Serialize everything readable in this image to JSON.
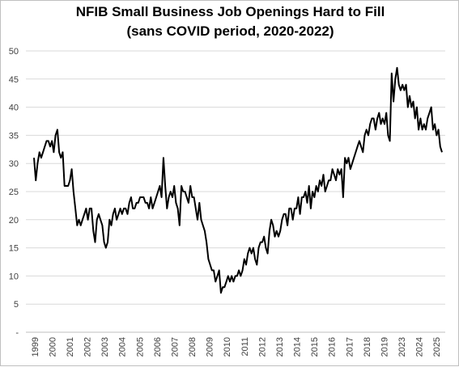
{
  "colors": {
    "line": "#000000",
    "grid": "#d9d9d9",
    "axis": "#bfbfbf",
    "text": "#404040",
    "background": "#ffffff"
  },
  "chart_data": {
    "type": "line",
    "title": [
      "NFIB Small Business Job Openings Hard to Fill",
      "(sans COVID period, 2020-2022)"
    ],
    "xlabel": "",
    "ylabel": "",
    "ylim": [
      0,
      50
    ],
    "y_ticks": [
      "-",
      "5",
      "10",
      "15",
      "20",
      "25",
      "30",
      "35",
      "40",
      "45",
      "50"
    ],
    "x_tick_labels": [
      "1999",
      "2000",
      "2001",
      "2002",
      "2003",
      "2004",
      "2005",
      "2006",
      "2007",
      "2008",
      "2009",
      "2010",
      "2011",
      "2012",
      "2013",
      "2014",
      "2015",
      "2016",
      "2017",
      "2018",
      "2019",
      "2023",
      "2024",
      "2025"
    ],
    "grid": "horizontal",
    "legend": "none",
    "series": [
      {
        "values": [
          31,
          27,
          30,
          32,
          31,
          32,
          33,
          34,
          34,
          33,
          34,
          32,
          35,
          36,
          32,
          31,
          32,
          26,
          26,
          26,
          27,
          29,
          25,
          22,
          19,
          20,
          19,
          20,
          21,
          22,
          20,
          22,
          22,
          18,
          16,
          20,
          21,
          20,
          19,
          16,
          15,
          16,
          20,
          19,
          21,
          22,
          20,
          21,
          22,
          21,
          22,
          22,
          21,
          23,
          24,
          22,
          22,
          23,
          23,
          24,
          24,
          24,
          23,
          23,
          22,
          24,
          22,
          23,
          24,
          25,
          26,
          24,
          31,
          26,
          22,
          24,
          25,
          24,
          26,
          23,
          22,
          19,
          26,
          25,
          25,
          24,
          23,
          26,
          24,
          24,
          22,
          20,
          23,
          20,
          19,
          18,
          16,
          13,
          12,
          11,
          11,
          9,
          10,
          11,
          7,
          8,
          8,
          9,
          10,
          9,
          10,
          9,
          10,
          10,
          11,
          10,
          11,
          13,
          12,
          14,
          15,
          14,
          15,
          13,
          12,
          15,
          16,
          16,
          17,
          15,
          14,
          18,
          20,
          19,
          17,
          18,
          17,
          18,
          20,
          21,
          21,
          19,
          22,
          22,
          20,
          22,
          22,
          24,
          21,
          24,
          24,
          25,
          23,
          26,
          22,
          25,
          24,
          26,
          25,
          27,
          26,
          28,
          25,
          26,
          27,
          27,
          29,
          28,
          27,
          29,
          28,
          29,
          24,
          31,
          30,
          31,
          29,
          30,
          31,
          32,
          33,
          34,
          33,
          32,
          35,
          36,
          35,
          37,
          38,
          38,
          36,
          38,
          39,
          37,
          38,
          37,
          39,
          35,
          34,
          46,
          41,
          45,
          47,
          44,
          43,
          44,
          43,
          44,
          40,
          42,
          40,
          41,
          38,
          40,
          36,
          38,
          36,
          37,
          36,
          38,
          39,
          40,
          36,
          37,
          35,
          36,
          33,
          32
        ]
      }
    ]
  }
}
